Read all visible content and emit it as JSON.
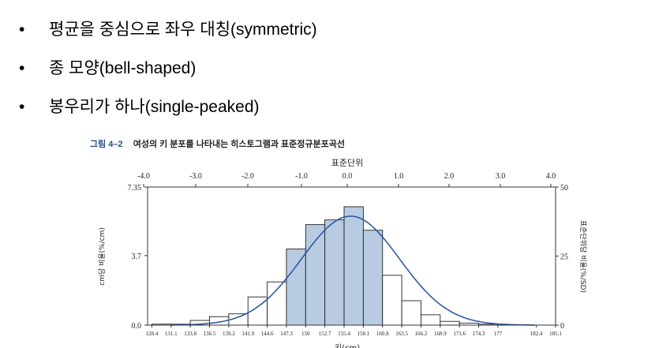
{
  "bullets": [
    {
      "marker": "•",
      "text": "평균을 중심으로 좌우 대칭(symmetric)"
    },
    {
      "marker": "•",
      "text": "종 모양(bell-shaped)"
    },
    {
      "marker": "•",
      "text": "봉우리가 하나(single-peaked)"
    }
  ],
  "figure": {
    "number": "그림 4–2",
    "title": "여성의 키 분포를 나타내는 히스토그램과 표준정규분포곡선"
  },
  "chart_data": {
    "type": "bar",
    "top_axis_label": "표준단위",
    "top_ticks": [
      "-4.0",
      "-3.0",
      "-2.0",
      "-1.0",
      "0.0",
      "1.0",
      "2.0",
      "3.0",
      "4.0"
    ],
    "top_tick_values": [
      -4,
      -3,
      -2,
      -1,
      0,
      1,
      2,
      3,
      4
    ],
    "left_axis_label": "cm당 비율(%/cm)",
    "left_ticks": [
      "7.35",
      "3.7",
      "0.0"
    ],
    "left_tick_values": [
      7.35,
      3.7,
      0.0
    ],
    "right_axis_label": "표준단위당 비율(%/SD)",
    "right_ticks": [
      "50",
      "25",
      "0"
    ],
    "right_tick_values": [
      50,
      25,
      0
    ],
    "xlabel": "키(cm)",
    "x_tick_labels": [
      "128.4",
      "131.1",
      "133.8",
      "136.5",
      "139.2",
      "141.9",
      "144.6",
      "147.3",
      "150",
      "152.7",
      "155.4",
      "158.1",
      "160.8",
      "163.5",
      "166.2",
      "168.9",
      "171.6",
      "174.3",
      "177",
      "182.4",
      "185.1"
    ],
    "x_tick_values": [
      128.4,
      131.1,
      133.8,
      136.5,
      139.2,
      141.9,
      144.6,
      147.3,
      150,
      152.7,
      155.4,
      158.1,
      160.8,
      163.5,
      166.2,
      168.9,
      171.6,
      174.3,
      177,
      182.4,
      185.1
    ],
    "x_range": [
      127.8,
      185.1
    ],
    "ylim": [
      0,
      7.35
    ],
    "bar_edges": [
      128.4,
      131.1,
      133.8,
      136.5,
      139.2,
      141.9,
      144.6,
      147.3,
      150,
      152.7,
      155.4,
      158.1,
      160.8,
      163.5,
      166.2,
      168.9,
      171.6,
      174.3,
      177
    ],
    "bar_values": [
      0.05,
      0.05,
      0.25,
      0.45,
      0.6,
      1.5,
      2.3,
      4.05,
      5.35,
      5.6,
      6.3,
      5.05,
      2.65,
      1.3,
      0.55,
      0.2,
      0.1,
      0.05
    ],
    "bar_highlight": [
      false,
      false,
      false,
      false,
      false,
      false,
      false,
      true,
      true,
      true,
      true,
      true,
      false,
      false,
      false,
      false,
      false,
      false
    ],
    "colors": {
      "highlight": "#b8cbe2",
      "bar": "#ffffff",
      "curve": "#2d5aa0",
      "axis": "#333333"
    }
  }
}
